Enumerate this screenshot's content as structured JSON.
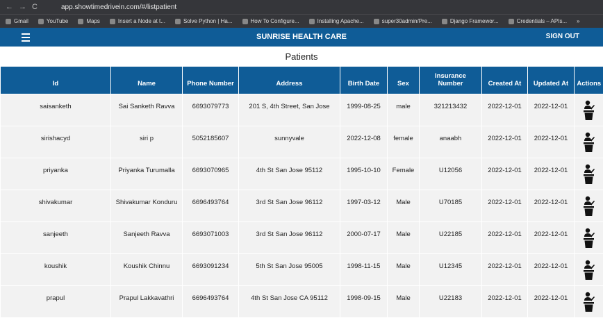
{
  "browser": {
    "url": "app.showtimedrivein.com/#/listpatient",
    "bookmarks": [
      "Gmail",
      "YouTube",
      "Maps",
      "Insert a Node at t...",
      "Solve Python | Ha...",
      "How To Configure...",
      "Installing Apache...",
      "super30admin/Pre...",
      "Django Framewor...",
      "Credentials – APIs..."
    ],
    "more": "»"
  },
  "header": {
    "title": "SUNRISE HEALTH CARE",
    "sign_out": "SIGN OUT"
  },
  "page_title": "Patients",
  "table": {
    "columns": [
      "Id",
      "Name",
      "Phone Number",
      "Address",
      "Birth Date",
      "Sex",
      "Insurance Number",
      "Created At",
      "Updated At",
      "Actions"
    ],
    "rows": [
      [
        "saisanketh",
        "Sai Sanketh Ravva",
        "6693079773",
        "201 S, 4th Street, San Jose",
        "1999-08-25",
        "male",
        "321213432",
        "2022-12-01",
        "2022-12-01"
      ],
      [
        "sirishacyd",
        "siri p",
        "5052185607",
        "sunnyvale",
        "2022-12-08",
        "female",
        "anaabh",
        "2022-12-01",
        "2022-12-01"
      ],
      [
        "priyanka",
        "Priyanka Turumalla",
        "6693070965",
        "4th St San Jose 95112",
        "1995-10-10",
        "Female",
        "U12056",
        "2022-12-01",
        "2022-12-01"
      ],
      [
        "shivakumar",
        "Shivakumar Konduru",
        "6696493764",
        "3rd St San Jose 96112",
        "1997-03-12",
        "Male",
        "U70185",
        "2022-12-01",
        "2022-12-01"
      ],
      [
        "sanjeeth",
        "Sanjeeth Ravva",
        "6693071003",
        "3rd St San Jose 96112",
        "2000-07-17",
        "Male",
        "U22185",
        "2022-12-01",
        "2022-12-01"
      ],
      [
        "koushik",
        "Koushik Chinnu",
        "6693091234",
        "5th St San Jose 95005",
        "1998-11-15",
        "Male",
        "U12345",
        "2022-12-01",
        "2022-12-01"
      ],
      [
        "prapul",
        "Prapul Lakkavathri",
        "6696493764",
        "4th St San Jose CA 95112",
        "1998-09-15",
        "Male",
        "U22183",
        "2022-12-01",
        "2022-12-01"
      ]
    ]
  }
}
